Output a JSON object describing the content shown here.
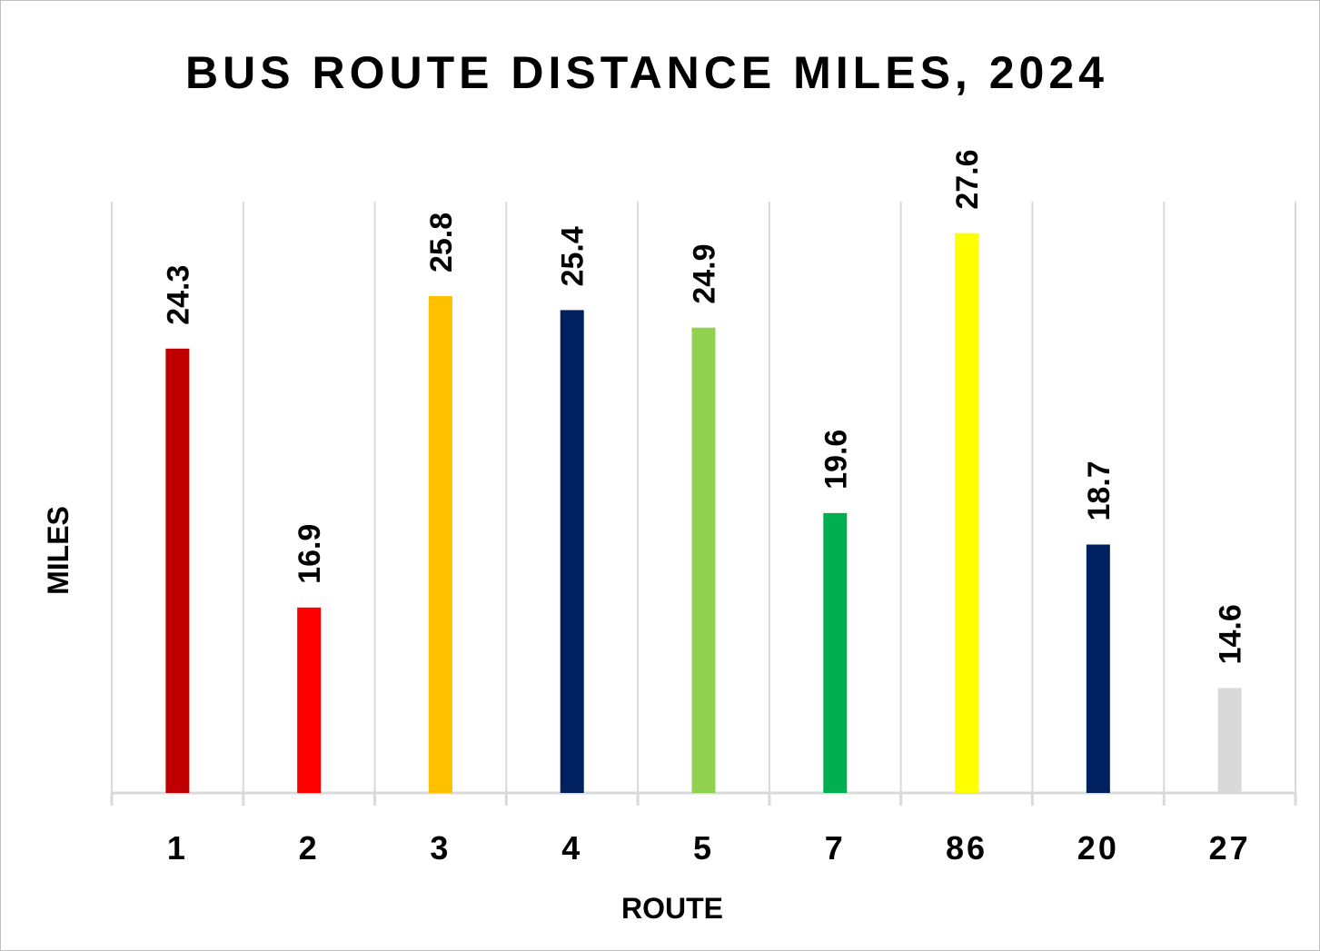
{
  "chart_data": {
    "type": "bar",
    "title": "BUS ROUTE DISTANCE MILES, 2024",
    "xlabel": "ROUTE",
    "ylabel": "MILES",
    "categories": [
      "1",
      "2",
      "3",
      "4",
      "5",
      "7",
      "86",
      "20",
      "27"
    ],
    "values": [
      24.3,
      16.9,
      25.8,
      25.4,
      24.9,
      19.6,
      27.6,
      18.7,
      14.6
    ],
    "data_labels": [
      "24.3",
      "16.9",
      "25.8",
      "25.4",
      "24.9",
      "19.6",
      "27.6",
      "18.7",
      "14.6"
    ],
    "colors": [
      "#c00000",
      "#ff0000",
      "#ffc000",
      "#002060",
      "#92d050",
      "#00b050",
      "#ffff00",
      "#002060",
      "#d9d9d9"
    ],
    "ylim": [
      11.6,
      28.5
    ],
    "grid": "vertical",
    "legend": "none"
  }
}
